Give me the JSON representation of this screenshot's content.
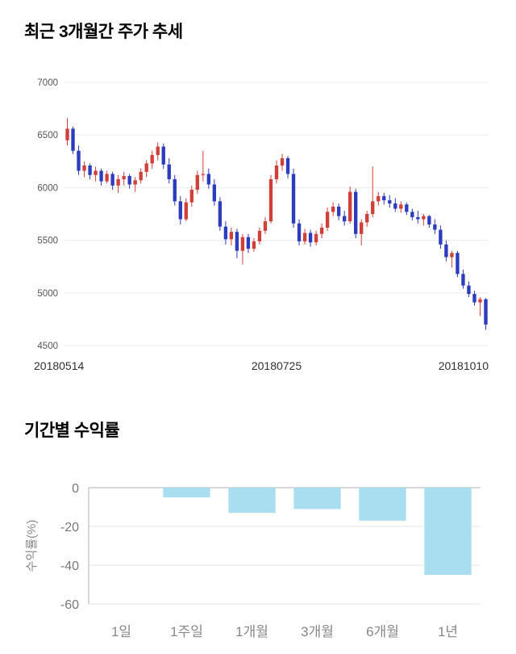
{
  "sections": {
    "price_trend": {
      "title": "최근 3개월간 주가 추세"
    },
    "returns": {
      "title": "기간별 수익률"
    }
  },
  "chart_data": [
    {
      "type": "candlestick",
      "title": "최근 3개월간 주가 추세",
      "ylim": [
        4500,
        7000
      ],
      "y_ticks": [
        7000,
        6500,
        6000,
        5500,
        5000,
        4500
      ],
      "x_labels": [
        "20180514",
        "20180725",
        "20181010"
      ],
      "up_color": "#d0403a",
      "down_color": "#2b3cbe",
      "grid": true,
      "candles": [
        [
          6450,
          6660,
          6400,
          6560
        ],
        [
          6560,
          6580,
          6320,
          6350
        ],
        [
          6350,
          6400,
          6120,
          6160
        ],
        [
          6160,
          6250,
          6100,
          6210
        ],
        [
          6210,
          6230,
          6080,
          6120
        ],
        [
          6120,
          6200,
          6060,
          6160
        ],
        [
          6160,
          6180,
          6020,
          6060
        ],
        [
          6060,
          6160,
          6040,
          6130
        ],
        [
          6130,
          6150,
          5980,
          6020
        ],
        [
          6020,
          6120,
          5950,
          6080
        ],
        [
          6080,
          6150,
          6020,
          6110
        ],
        [
          6110,
          6130,
          5990,
          6030
        ],
        [
          6030,
          6100,
          5960,
          6070
        ],
        [
          6070,
          6180,
          6040,
          6150
        ],
        [
          6150,
          6260,
          6100,
          6230
        ],
        [
          6230,
          6350,
          6180,
          6310
        ],
        [
          6310,
          6430,
          6260,
          6390
        ],
        [
          6390,
          6420,
          6180,
          6220
        ],
        [
          6220,
          6280,
          6040,
          6080
        ],
        [
          6080,
          6120,
          5830,
          5870
        ],
        [
          5870,
          5920,
          5650,
          5700
        ],
        [
          5700,
          5900,
          5680,
          5860
        ],
        [
          5860,
          6020,
          5820,
          5980
        ],
        [
          5980,
          6160,
          5940,
          6120
        ],
        [
          6120,
          6350,
          6060,
          6130
        ],
        [
          6130,
          6180,
          5990,
          6030
        ],
        [
          6030,
          6080,
          5830,
          5870
        ],
        [
          5870,
          5910,
          5590,
          5630
        ],
        [
          5630,
          5680,
          5460,
          5510
        ],
        [
          5510,
          5620,
          5450,
          5580
        ],
        [
          5580,
          5610,
          5330,
          5400
        ],
        [
          5400,
          5560,
          5270,
          5530
        ],
        [
          5530,
          5560,
          5380,
          5420
        ],
        [
          5420,
          5520,
          5390,
          5490
        ],
        [
          5490,
          5620,
          5460,
          5590
        ],
        [
          5590,
          5720,
          5560,
          5680
        ],
        [
          5680,
          6120,
          5660,
          6080
        ],
        [
          6080,
          6260,
          6040,
          6210
        ],
        [
          6210,
          6320,
          6160,
          6280
        ],
        [
          6280,
          6300,
          6090,
          6130
        ],
        [
          6130,
          6180,
          5620,
          5660
        ],
        [
          5660,
          5700,
          5450,
          5490
        ],
        [
          5490,
          5610,
          5460,
          5570
        ],
        [
          5570,
          5600,
          5440,
          5480
        ],
        [
          5480,
          5590,
          5450,
          5560
        ],
        [
          5560,
          5660,
          5520,
          5620
        ],
        [
          5620,
          5810,
          5590,
          5770
        ],
        [
          5770,
          5860,
          5730,
          5820
        ],
        [
          5820,
          5850,
          5690,
          5730
        ],
        [
          5730,
          5780,
          5640,
          5680
        ],
        [
          5680,
          6010,
          5660,
          5960
        ],
        [
          5960,
          5990,
          5520,
          5560
        ],
        [
          5560,
          5700,
          5450,
          5670
        ],
        [
          5670,
          5780,
          5630,
          5750
        ],
        [
          5750,
          6200,
          5720,
          5870
        ],
        [
          5870,
          5960,
          5830,
          5920
        ],
        [
          5920,
          5950,
          5840,
          5880
        ],
        [
          5880,
          5930,
          5810,
          5850
        ],
        [
          5850,
          5900,
          5770,
          5800
        ],
        [
          5800,
          5870,
          5760,
          5840
        ],
        [
          5840,
          5860,
          5740,
          5770
        ],
        [
          5770,
          5800,
          5690,
          5720
        ],
        [
          5720,
          5780,
          5660,
          5700
        ],
        [
          5700,
          5750,
          5640,
          5730
        ],
        [
          5730,
          5740,
          5620,
          5650
        ],
        [
          5650,
          5700,
          5560,
          5600
        ],
        [
          5600,
          5640,
          5420,
          5460
        ],
        [
          5460,
          5500,
          5300,
          5340
        ],
        [
          5340,
          5400,
          5240,
          5380
        ],
        [
          5380,
          5400,
          5150,
          5180
        ],
        [
          5180,
          5220,
          5040,
          5070
        ],
        [
          5070,
          5110,
          4960,
          4990
        ],
        [
          4990,
          5020,
          4880,
          4910
        ],
        [
          4910,
          4960,
          4780,
          4940
        ],
        [
          4940,
          4950,
          4650,
          4700
        ]
      ]
    },
    {
      "type": "bar",
      "title": "기간별 수익률",
      "categories": [
        "1일",
        "1주일",
        "1개월",
        "3개월",
        "6개월",
        "1년"
      ],
      "values": [
        0,
        -5,
        -13,
        -11,
        -17,
        -45
      ],
      "ylabel": "수익률(%)",
      "y_ticks": [
        0,
        -20,
        -40,
        -60
      ],
      "ylim": [
        -60,
        0
      ],
      "grid": true,
      "legend": "none",
      "bar_color": "#a9def0",
      "axis_color": "#b0b0b0",
      "gridline_color": "#e4e4e4"
    }
  ]
}
